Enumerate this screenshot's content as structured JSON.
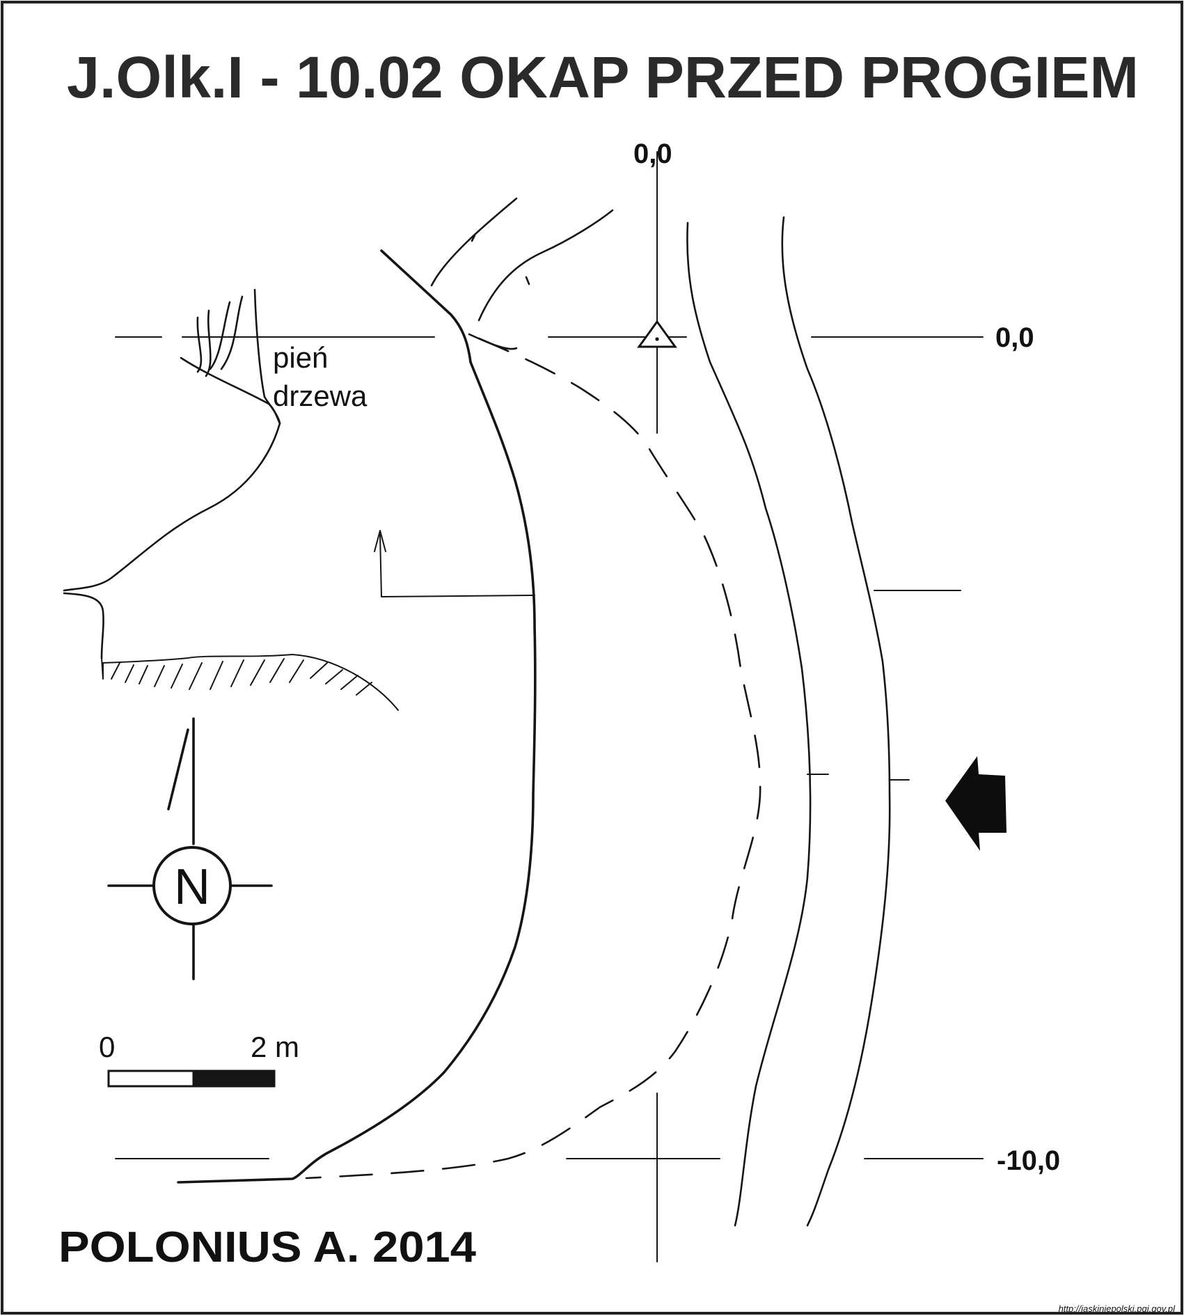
{
  "title": "J.Olk.I - 10.02  OKAP PRZED PROGIEM",
  "coords": {
    "top": "0,0",
    "right_upper": "0,0",
    "right_lower": "-10,0"
  },
  "feature_label": {
    "line1": "pień",
    "line2": "drzewa"
  },
  "compass": {
    "letter": "N"
  },
  "scale": {
    "start": "0",
    "end": "2 m"
  },
  "author": "POLONIUS A. 2014",
  "source": "http://jaskiniepolski.pgi.gov.pl",
  "colors": {
    "ink": "#151515",
    "background": "#ffffff"
  }
}
